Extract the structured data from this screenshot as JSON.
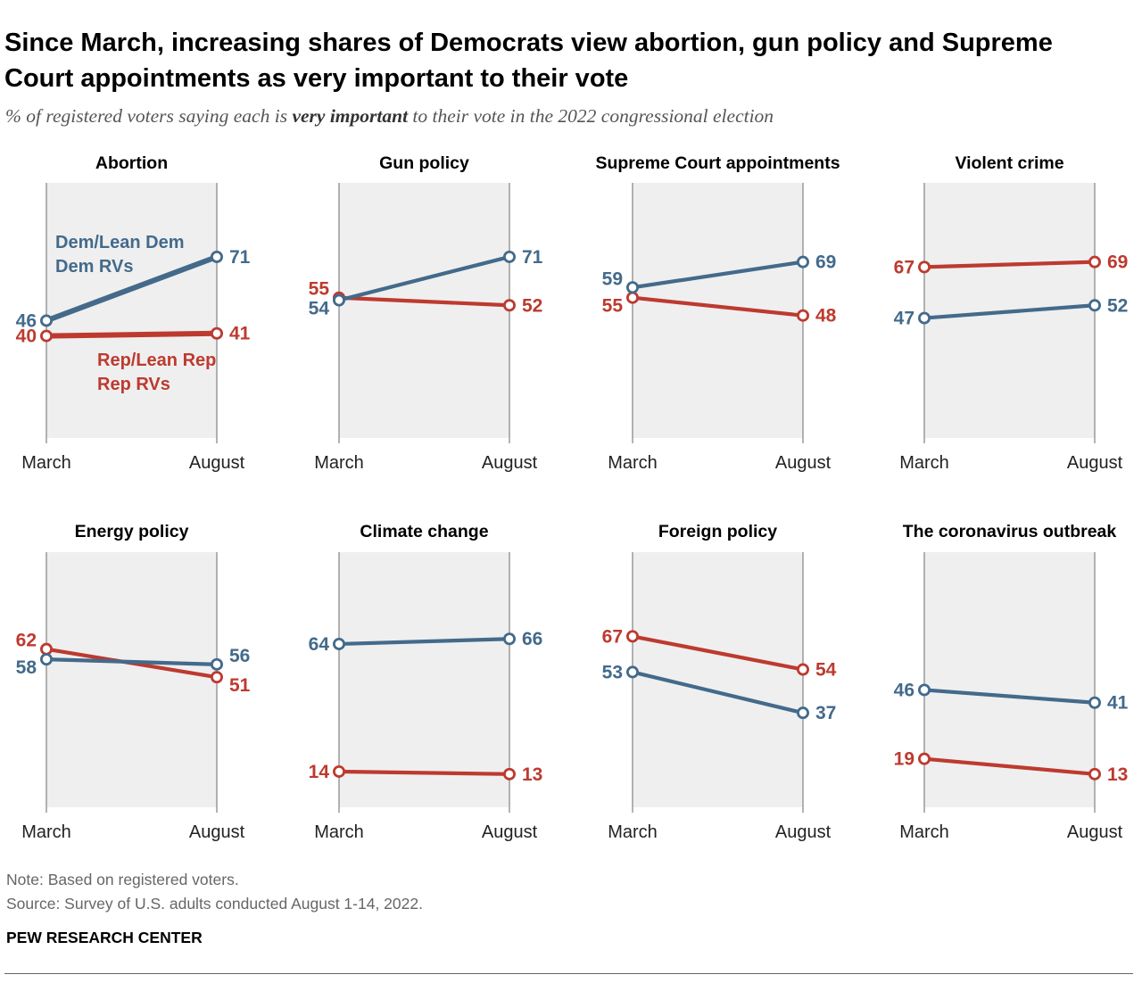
{
  "header": {
    "title": "Since March, increasing shares of Democrats view abortion, gun policy and Supreme Court appointments as very important to their vote",
    "subtitle_pre": "% of registered voters saying each is ",
    "subtitle_em": "very important",
    "subtitle_post": " to their vote in the 2022 congressional election"
  },
  "footer": {
    "note": "Note: Based on registered voters.",
    "source": "Source: Survey of U.S. adults conducted August 1-14, 2022.",
    "brand": "PEW RESEARCH CENTER"
  },
  "colors": {
    "dem": "#436a8b",
    "rep": "#bd3a2f",
    "panel": "#efefef",
    "axis": "#8a8a8a"
  },
  "chart_data": {
    "type": "line",
    "layout": "small-multiples",
    "x": [
      "March",
      "August"
    ],
    "ylim": [
      0,
      100
    ],
    "series_labels": {
      "dem": "Dem/Lean Dem RVs",
      "rep": "Rep/Lean Rep RVs"
    },
    "panels": [
      {
        "title": "Abortion",
        "dem": [
          46,
          71
        ],
        "rep": [
          40,
          41
        ]
      },
      {
        "title": "Gun policy",
        "dem": [
          54,
          71
        ],
        "rep": [
          55,
          52
        ]
      },
      {
        "title": "Supreme Court appointments",
        "dem": [
          59,
          69
        ],
        "rep": [
          55,
          48
        ]
      },
      {
        "title": "Violent crime",
        "dem": [
          47,
          52
        ],
        "rep": [
          67,
          69
        ]
      },
      {
        "title": "Energy policy",
        "dem": [
          58,
          56
        ],
        "rep": [
          62,
          51
        ]
      },
      {
        "title": "Climate change",
        "dem": [
          64,
          66
        ],
        "rep": [
          14,
          13
        ]
      },
      {
        "title": "Foreign policy",
        "dem": [
          53,
          37
        ],
        "rep": [
          67,
          54
        ]
      },
      {
        "title": "The coronavirus outbreak",
        "dem": [
          46,
          41
        ],
        "rep": [
          19,
          13
        ]
      }
    ]
  }
}
